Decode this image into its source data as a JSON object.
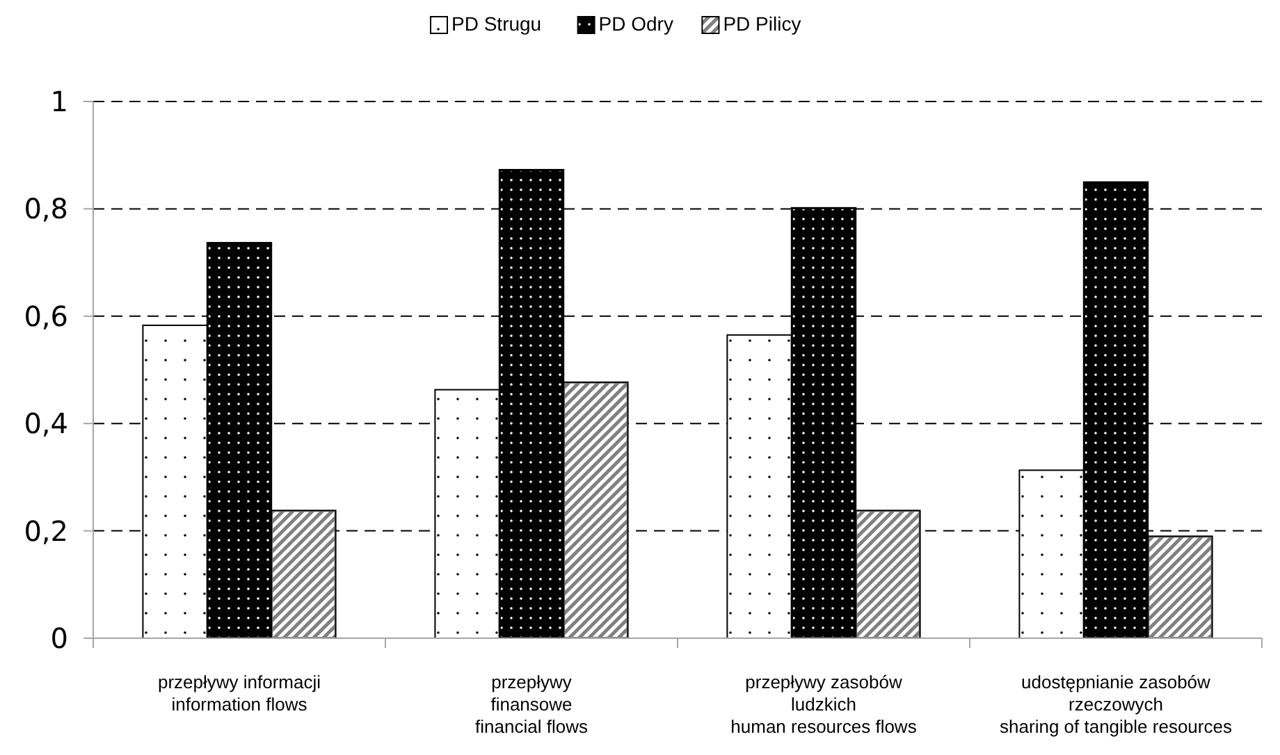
{
  "chart_data": {
    "type": "bar",
    "categories": [
      "przepływy informacji\ninformation flows",
      "przepływy\nfinansowe\nfinancial flows",
      "przepływy zasobów\nludzkich\nhuman resources flows",
      "udostępnianie zasobów\nrzeczowych\nsharing of tangible resources"
    ],
    "series": [
      {
        "name": "PD Strugu",
        "color": "#ffffff",
        "values": [
          0.583,
          0.463,
          0.565,
          0.313
        ]
      },
      {
        "name": "PD Odry",
        "color": "#000000",
        "values": [
          0.737,
          0.873,
          0.802,
          0.85
        ]
      },
      {
        "name": "PD Pilicy",
        "color": "#808080",
        "values": [
          0.238,
          0.477,
          0.238,
          0.19
        ]
      }
    ],
    "ylim": [
      0,
      1
    ],
    "yticks": [
      {
        "value": 0,
        "label": "0"
      },
      {
        "value": 0.2,
        "label": "0,2"
      },
      {
        "value": 0.4,
        "label": "0,4"
      },
      {
        "value": 0.6,
        "label": "0,6"
      },
      {
        "value": 0.8,
        "label": "0,8"
      },
      {
        "value": 1,
        "label": "1"
      }
    ],
    "grid": "y",
    "legend": "top"
  }
}
